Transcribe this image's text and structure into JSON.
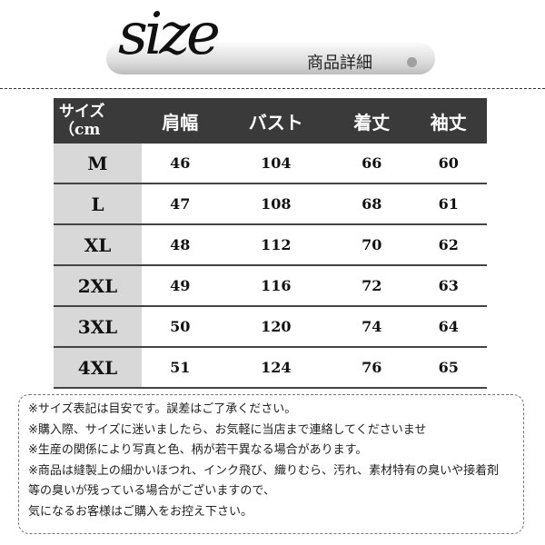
{
  "header": {
    "logo_text": "size",
    "subtitle": "商品詳細",
    "accent_colors": {
      "header_bg": "#3a3a3a",
      "size_col_bg": "#d8d8d8"
    }
  },
  "table": {
    "size_header_line1": "サイズ",
    "size_header_line2": "（cm",
    "columns": [
      "肩幅",
      "バスト",
      "着丈",
      "袖丈"
    ],
    "rows": [
      {
        "size": "M",
        "values": [
          "46",
          "104",
          "66",
          "60"
        ]
      },
      {
        "size": "L",
        "values": [
          "47",
          "108",
          "68",
          "61"
        ]
      },
      {
        "size": "XL",
        "values": [
          "48",
          "112",
          "70",
          "62"
        ]
      },
      {
        "size": "2XL",
        "values": [
          "49",
          "116",
          "72",
          "63"
        ]
      },
      {
        "size": "3XL",
        "values": [
          "50",
          "120",
          "74",
          "64"
        ]
      },
      {
        "size": "4XL",
        "values": [
          "51",
          "124",
          "76",
          "65"
        ]
      }
    ]
  },
  "notes": [
    "※サイズ表記は目安です。誤差はご了承ください。",
    "※購入際、サイズに迷いましたら、お気軽に当店まで連絡してくださいませ",
    "※生産の関係により写真と色、柄が若干異なる場合があります。",
    "※商品は縫製上の細かいほつれ、インク飛び、織りむら、汚れ、素材特有の臭いや接着剤",
    "等の臭いが残っている場合がございますので、",
    "気になるお客様はご購入をお控え下さい。"
  ]
}
